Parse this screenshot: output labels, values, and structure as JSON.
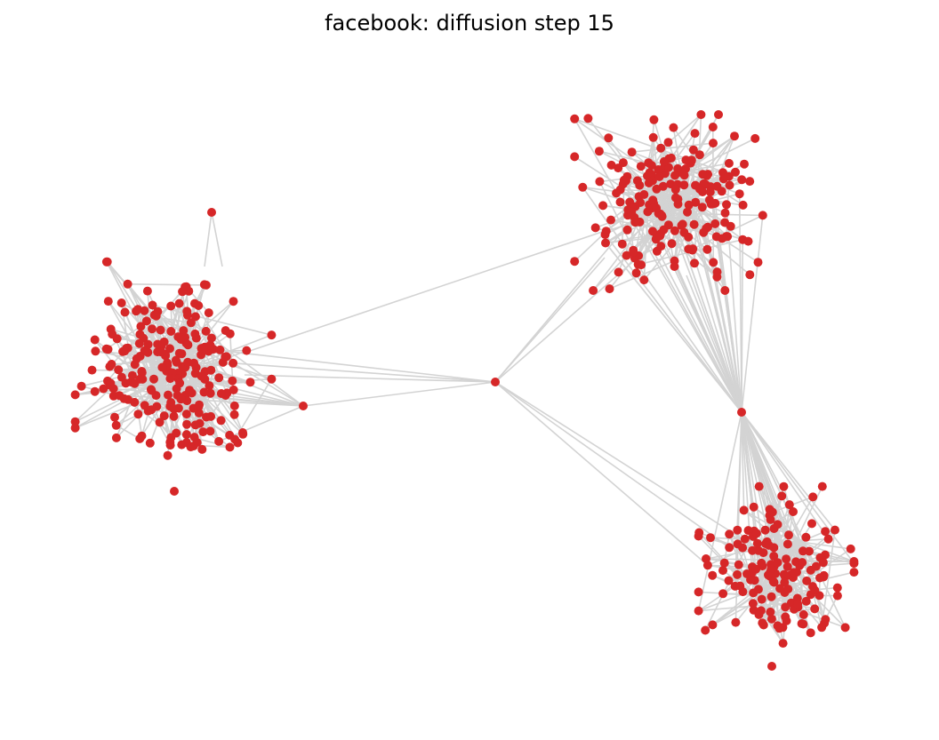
{
  "figure": {
    "title": "facebook: diffusion step 15",
    "step": 15,
    "colors": {
      "node": "#d62728",
      "edge": "#d3d3d3",
      "background": "#ffffff"
    }
  },
  "chart_data": {
    "type": "network",
    "title": "facebook: diffusion step 15",
    "grid": false,
    "axes_visible": false,
    "clusters": [
      {
        "name": "left",
        "node_count": 220,
        "state": "activated"
      },
      {
        "name": "top-right",
        "node_count": 190,
        "state": "activated"
      },
      {
        "name": "bottom-right",
        "node_count": 150,
        "state": "activated"
      }
    ],
    "bridge_nodes": [
      {
        "name": "center-hub",
        "links": [
          "left",
          "top-right",
          "bottom-right"
        ]
      },
      {
        "name": "right-hub",
        "links": [
          "top-right",
          "bottom-right"
        ]
      },
      {
        "name": "left-satellite",
        "links": [
          "left",
          "center-hub"
        ]
      }
    ]
  }
}
